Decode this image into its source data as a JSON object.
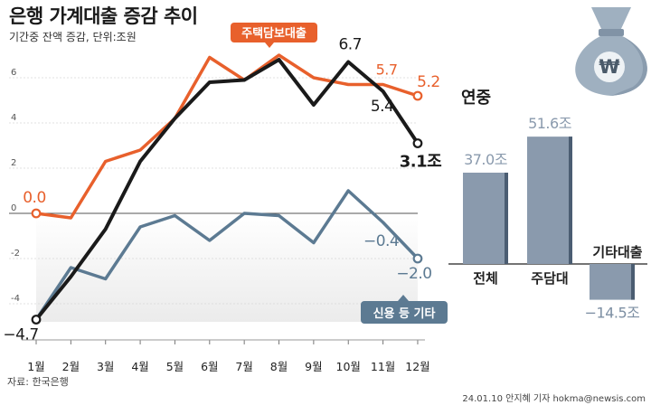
{
  "header": {
    "title": "은행 가계대출 증감 추이",
    "subtitle": "기간중 잔액 증감, 단위:조원"
  },
  "footer": {
    "source": "자료: 한국은행",
    "credit": "24.01.10 안지혜 기자 hokma@newsis.com"
  },
  "colors": {
    "total": "#1a1a1a",
    "mortgage": "#e8602c",
    "credit": "#5c7a92",
    "bar": "#8a9aad",
    "bar_side": "#4b5d72",
    "grid": "#d9d9d9",
    "bag_icon": "#9fb0c0"
  },
  "icons": [
    "won-money-bag-icon"
  ],
  "chart_data": [
    {
      "type": "line",
      "categories": [
        "1월",
        "2월",
        "3월",
        "4월",
        "5월",
        "6월",
        "7월",
        "8월",
        "9월",
        "10월",
        "11월",
        "12월"
      ],
      "ylim": [
        -5,
        7
      ],
      "yticks": [
        "6",
        "4",
        "2",
        "0",
        "-2",
        "-4"
      ],
      "grid": true,
      "series": [
        {
          "key": "total",
          "name": "",
          "values": [
            -4.7,
            -2.8,
            -0.7,
            2.3,
            4.2,
            5.8,
            5.9,
            6.8,
            4.8,
            6.7,
            5.4,
            3.1
          ]
        },
        {
          "key": "mortgage",
          "name": "주택담보대출",
          "values": [
            0.0,
            -0.2,
            2.3,
            2.8,
            4.2,
            6.9,
            5.9,
            7.0,
            6.0,
            5.7,
            5.7,
            5.2
          ]
        },
        {
          "key": "credit",
          "name": "신용 등 기타",
          "values": [
            -4.7,
            -2.4,
            -2.9,
            -0.6,
            -0.1,
            -1.2,
            0.0,
            -0.1,
            -1.3,
            1.0,
            -0.4,
            -2.0
          ]
        }
      ],
      "annotations": [
        {
          "series": "mortgage",
          "index": 0,
          "text": "0.0"
        },
        {
          "series": "mortgage",
          "index": 10,
          "text": "5.7"
        },
        {
          "series": "mortgage",
          "index": 11,
          "text": "5.2"
        },
        {
          "series": "total",
          "index": 0,
          "text": "−4.7"
        },
        {
          "series": "total",
          "index": 9,
          "text": "6.7"
        },
        {
          "series": "total",
          "index": 10,
          "text": "5.4"
        },
        {
          "series": "total",
          "index": 11,
          "text": "3.1조"
        },
        {
          "series": "credit",
          "index": 10,
          "text": "−0.4"
        },
        {
          "series": "credit",
          "index": 11,
          "text": "−2.0"
        }
      ]
    },
    {
      "type": "bar",
      "title": "연중",
      "categories": [
        "전체",
        "주담대",
        "기타대출"
      ],
      "values": [
        37.0,
        51.6,
        -14.5
      ],
      "labels": [
        "37.0조",
        "51.6조",
        "−14.5조"
      ]
    }
  ]
}
